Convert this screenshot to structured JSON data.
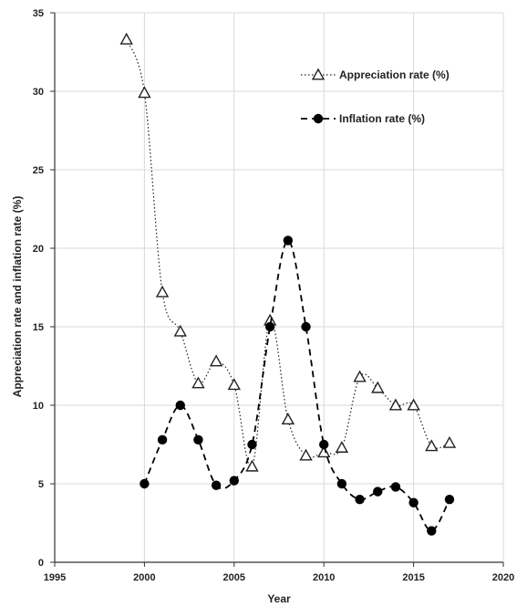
{
  "chart_data": {
    "type": "line",
    "title": "",
    "xlabel": "Year",
    "ylabel": "Appreciation rate  and inflation rate (%)",
    "xlim": [
      1995,
      2020
    ],
    "ylim": [
      0,
      35
    ],
    "x_ticks": [
      "1995",
      "2000",
      "2005",
      "2010",
      "2015",
      "2020"
    ],
    "y_ticks": [
      "0",
      "5",
      "10",
      "15",
      "20",
      "25",
      "30",
      "35"
    ],
    "grid": "vertical-and-horizontal",
    "legend_position": "top-right",
    "series": [
      {
        "name": "Appreciation rate (%)",
        "marker": "open-triangle",
        "line_style": "dotted",
        "color": "#222222",
        "x": [
          1999,
          2000,
          2001,
          2002,
          2003,
          2004,
          2005,
          2006,
          2007,
          2008,
          2009,
          2010,
          2011,
          2012,
          2013,
          2014,
          2015,
          2016,
          2017
        ],
        "y": [
          33.3,
          29.9,
          17.2,
          14.7,
          11.4,
          12.8,
          11.3,
          6.1,
          15.4,
          9.1,
          6.8,
          7.0,
          7.3,
          11.8,
          11.1,
          10.0,
          10.0,
          7.4,
          7.6
        ]
      },
      {
        "name": "Inflation rate (%)",
        "marker": "filled-circle",
        "line_style": "dashed",
        "color": "#000000",
        "x": [
          2000,
          2001,
          2002,
          2003,
          2004,
          2005,
          2006,
          2007,
          2008,
          2009,
          2010,
          2011,
          2012,
          2013,
          2014,
          2015,
          2016,
          2017
        ],
        "y": [
          5.0,
          7.8,
          10.0,
          7.8,
          4.9,
          5.2,
          7.5,
          15.0,
          20.5,
          15.0,
          7.5,
          5.0,
          4.0,
          4.5,
          4.8,
          3.8,
          2.0,
          4.0
        ]
      }
    ]
  }
}
